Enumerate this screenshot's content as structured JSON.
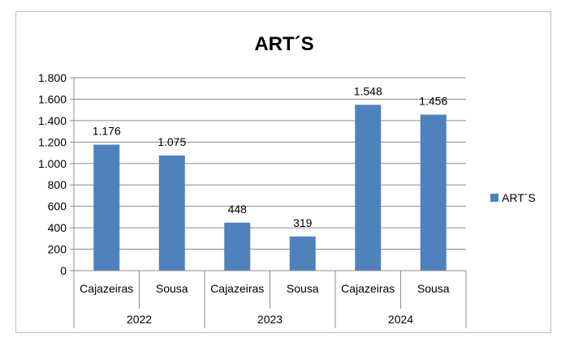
{
  "chart_data": {
    "type": "bar",
    "title": "ART´S",
    "groups": [
      "2022",
      "2023",
      "2024"
    ],
    "categories": [
      "Cajazeiras",
      "Sousa",
      "Cajazeiras",
      "Sousa",
      "Cajazeiras",
      "Sousa"
    ],
    "series": [
      {
        "name": "ART´S",
        "values": [
          1176,
          1075,
          448,
          319,
          1548,
          1456
        ],
        "labels": [
          "1.176",
          "1.075",
          "448",
          "319",
          "1.548",
          "1.456"
        ]
      }
    ],
    "ylim": [
      0,
      1800
    ],
    "yticks": [
      0,
      200,
      400,
      600,
      800,
      1000,
      1200,
      1400,
      1600,
      1800
    ],
    "ytick_labels": [
      "0",
      "200",
      "400",
      "600",
      "800",
      "1.000",
      "1.200",
      "1.400",
      "1.600",
      "1.800"
    ],
    "grid": true,
    "legend_position": "right",
    "bar_color": "#4f81bd"
  }
}
